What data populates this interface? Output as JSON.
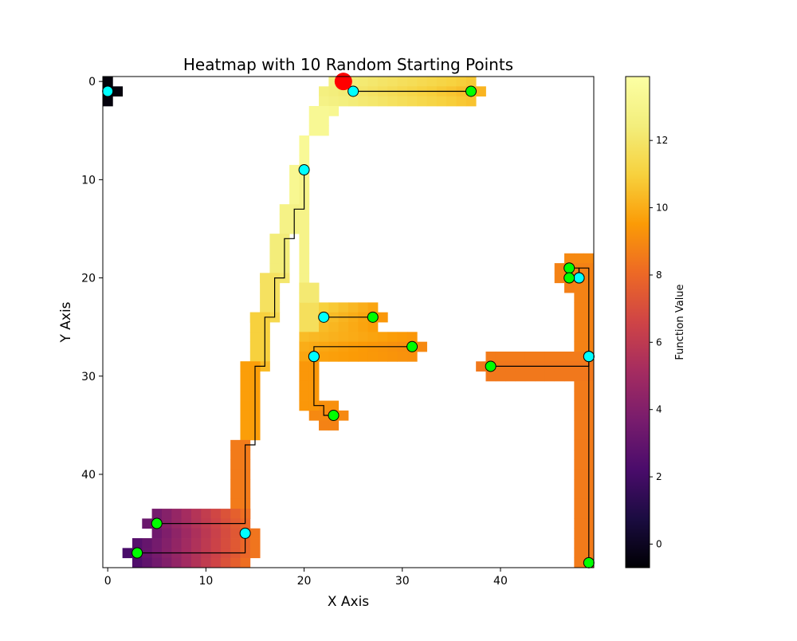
{
  "chart_data": {
    "type": "heatmap",
    "title": "Heatmap with 10 Random Starting Points",
    "xlabel": "X Axis",
    "ylabel": "Y Axis",
    "grid_size": [
      50,
      50
    ],
    "xlim": [
      -0.5,
      49.5
    ],
    "ylim": [
      49.5,
      -0.5
    ],
    "x_ticks": [
      0,
      10,
      20,
      30,
      40
    ],
    "y_ticks": [
      0,
      10,
      20,
      30,
      40
    ],
    "colormap": "inferno",
    "colorbar": {
      "label": "Function Value",
      "range": [
        -0.7,
        13.9
      ],
      "ticks": [
        0,
        2,
        4,
        6,
        8,
        10,
        12
      ]
    },
    "global_max": {
      "x": 24,
      "y": 0,
      "color": "#ff0000"
    },
    "start_color": "#00ff00",
    "end_color": "#00ffff",
    "path_color": "#000000",
    "paths": [
      {
        "start": [
          37,
          1
        ],
        "end": [
          25,
          1
        ],
        "route": [
          [
            37,
            1
          ],
          [
            25,
            1
          ]
        ]
      },
      {
        "start": [
          27,
          24
        ],
        "end": [
          22,
          24
        ],
        "route": [
          [
            27,
            24
          ],
          [
            22,
            24
          ]
        ]
      },
      {
        "start": [
          31,
          27
        ],
        "end": [
          21,
          28
        ],
        "route": [
          [
            31,
            27
          ],
          [
            21,
            27
          ],
          [
            21,
            28
          ]
        ]
      },
      {
        "start": [
          23,
          34
        ],
        "end": [
          21,
          28
        ],
        "route": [
          [
            23,
            34
          ],
          [
            22,
            34
          ],
          [
            22,
            33
          ],
          [
            21,
            33
          ],
          [
            21,
            28
          ]
        ]
      },
      {
        "start": [
          47,
          19
        ],
        "end": [
          48,
          20
        ],
        "route": [
          [
            47,
            19
          ],
          [
            48,
            19
          ],
          [
            48,
            20
          ]
        ]
      },
      {
        "start": [
          47,
          20
        ],
        "end": [
          48,
          20
        ],
        "route": [
          [
            47,
            20
          ],
          [
            48,
            20
          ]
        ]
      },
      {
        "start": [
          39,
          29
        ],
        "end": [
          49,
          28
        ],
        "route": [
          [
            39,
            29
          ],
          [
            49,
            29
          ],
          [
            49,
            28
          ]
        ]
      },
      {
        "start": [
          5,
          45
        ],
        "end": [
          20,
          9
        ],
        "route": [
          [
            5,
            45
          ],
          [
            14,
            45
          ],
          [
            14,
            37
          ],
          [
            15,
            37
          ],
          [
            15,
            29
          ],
          [
            16,
            29
          ],
          [
            16,
            24
          ],
          [
            17,
            24
          ],
          [
            17,
            20
          ],
          [
            18,
            20
          ],
          [
            18,
            16
          ],
          [
            19,
            16
          ],
          [
            19,
            13
          ],
          [
            20,
            13
          ],
          [
            20,
            9
          ]
        ]
      },
      {
        "start": [
          3,
          48
        ],
        "end": [
          14,
          46
        ],
        "route": [
          [
            3,
            48
          ],
          [
            14,
            48
          ],
          [
            14,
            46
          ]
        ]
      },
      {
        "start": [
          49,
          49
        ],
        "end": [
          49,
          28
        ],
        "route": [
          [
            49,
            49
          ],
          [
            49,
            28
          ]
        ]
      }
    ],
    "extra_endpoints": [
      [
        0,
        1
      ]
    ],
    "extra_route": [
      [
        49,
        28
      ],
      [
        49,
        19
      ],
      [
        48,
        19
      ],
      [
        48,
        20
      ]
    ],
    "heatmap_regions": [
      {
        "rows": [
          0,
          0
        ],
        "cols": [
          0,
          0
        ],
        "value": -0.5
      },
      {
        "rows": [
          1,
          1
        ],
        "cols": [
          0,
          1
        ],
        "value": -0.5
      },
      {
        "rows": [
          2,
          2
        ],
        "cols": [
          0,
          0
        ],
        "value": -0.5
      },
      {
        "rows": [
          0,
          0
        ],
        "cols": [
          23,
          37
        ],
        "value": 12.6,
        "value_end": 10.8
      },
      {
        "rows": [
          1,
          1
        ],
        "cols": [
          22,
          38
        ],
        "value": 12.6,
        "value_end": 10.2
      },
      {
        "rows": [
          2,
          2
        ],
        "cols": [
          22,
          37
        ],
        "value": 12.8,
        "value_end": 10.6
      },
      {
        "rows": [
          3,
          3
        ],
        "cols": [
          22,
          23
        ],
        "value": 13.2
      },
      {
        "rows": [
          3,
          5
        ],
        "cols": [
          21,
          22
        ],
        "value": 13.3
      },
      {
        "rows": [
          6,
          8
        ],
        "cols": [
          20,
          20
        ],
        "value": 13.4
      },
      {
        "rows": [
          9,
          12
        ],
        "cols": [
          19,
          20
        ],
        "value": 13.2
      },
      {
        "rows": [
          13,
          15
        ],
        "cols": [
          18,
          19
        ],
        "value": 12.8
      },
      {
        "rows": [
          16,
          19
        ],
        "cols": [
          17,
          18
        ],
        "value": 12.4
      },
      {
        "rows": [
          20,
          20
        ],
        "cols": [
          16,
          18
        ],
        "value": 12.1
      },
      {
        "rows": [
          20,
          23
        ],
        "cols": [
          16,
          17
        ],
        "value": 11.8
      },
      {
        "rows": [
          24,
          24
        ],
        "cols": [
          15,
          17
        ],
        "value": 11.4
      },
      {
        "rows": [
          24,
          28
        ],
        "cols": [
          15,
          16
        ],
        "value": 11.0
      },
      {
        "rows": [
          29,
          29
        ],
        "cols": [
          14,
          16
        ],
        "value": 10.4
      },
      {
        "rows": [
          29,
          36
        ],
        "cols": [
          14,
          15
        ],
        "value": 9.6
      },
      {
        "rows": [
          37,
          44
        ],
        "cols": [
          13,
          14
        ],
        "value": 8.6
      },
      {
        "rows": [
          9,
          20
        ],
        "cols": [
          20,
          20
        ],
        "value": 12.9
      },
      {
        "rows": [
          21,
          25
        ],
        "cols": [
          20,
          21
        ],
        "value": 11.7
      },
      {
        "rows": [
          21,
          22
        ],
        "cols": [
          20,
          21
        ],
        "value": 12.2
      },
      {
        "rows": [
          23,
          23
        ],
        "cols": [
          22,
          27
        ],
        "value": 11.0,
        "value_end": 9.8
      },
      {
        "rows": [
          24,
          24
        ],
        "cols": [
          22,
          28
        ],
        "value": 10.6,
        "value_end": 9.4
      },
      {
        "rows": [
          25,
          25
        ],
        "cols": [
          22,
          27
        ],
        "value": 10.4,
        "value_end": 9.6
      },
      {
        "rows": [
          26,
          26
        ],
        "cols": [
          20,
          31
        ],
        "value": 10.4,
        "value_end": 9.4
      },
      {
        "rows": [
          27,
          27
        ],
        "cols": [
          20,
          32
        ],
        "value": 10.0,
        "value_end": 9.0
      },
      {
        "rows": [
          28,
          28
        ],
        "cols": [
          20,
          31
        ],
        "value": 9.8,
        "value_end": 9.2
      },
      {
        "rows": [
          29,
          33
        ],
        "cols": [
          20,
          21
        ],
        "value": 9.4
      },
      {
        "rows": [
          33,
          33
        ],
        "cols": [
          22,
          23
        ],
        "value": 9.2
      },
      {
        "rows": [
          34,
          34
        ],
        "cols": [
          21,
          24
        ],
        "value": 9.0
      },
      {
        "rows": [
          35,
          35
        ],
        "cols": [
          22,
          23
        ],
        "value": 8.8
      },
      {
        "rows": [
          18,
          18
        ],
        "cols": [
          47,
          49
        ],
        "value": 9.0
      },
      {
        "rows": [
          19,
          20
        ],
        "cols": [
          46,
          49
        ],
        "value": 8.8
      },
      {
        "rows": [
          21,
          21
        ],
        "cols": [
          47,
          47
        ],
        "value": 8.7
      },
      {
        "rows": [
          21,
          27
        ],
        "cols": [
          48,
          49
        ],
        "value": 8.8
      },
      {
        "rows": [
          28,
          28
        ],
        "cols": [
          39,
          49
        ],
        "value": 8.6
      },
      {
        "rows": [
          29,
          29
        ],
        "cols": [
          38,
          49
        ],
        "value": 8.5
      },
      {
        "rows": [
          30,
          30
        ],
        "cols": [
          39,
          49
        ],
        "value": 8.5
      },
      {
        "rows": [
          31,
          49
        ],
        "cols": [
          48,
          49
        ],
        "value": 8.6
      },
      {
        "rows": [
          44,
          44
        ],
        "cols": [
          5,
          14
        ],
        "value": 3.6,
        "value_end": 8.2
      },
      {
        "rows": [
          45,
          45
        ],
        "cols": [
          4,
          14
        ],
        "value": 3.2,
        "value_end": 8.0
      },
      {
        "rows": [
          46,
          46
        ],
        "cols": [
          5,
          15
        ],
        "value": 3.4,
        "value_end": 8.4
      },
      {
        "rows": [
          47,
          47
        ],
        "cols": [
          3,
          15
        ],
        "value": 2.6,
        "value_end": 8.4
      },
      {
        "rows": [
          48,
          48
        ],
        "cols": [
          2,
          15
        ],
        "value": 2.2,
        "value_end": 8.4
      },
      {
        "rows": [
          49,
          49
        ],
        "cols": [
          3,
          14
        ],
        "value": 2.4,
        "value_end": 8.2
      }
    ]
  }
}
